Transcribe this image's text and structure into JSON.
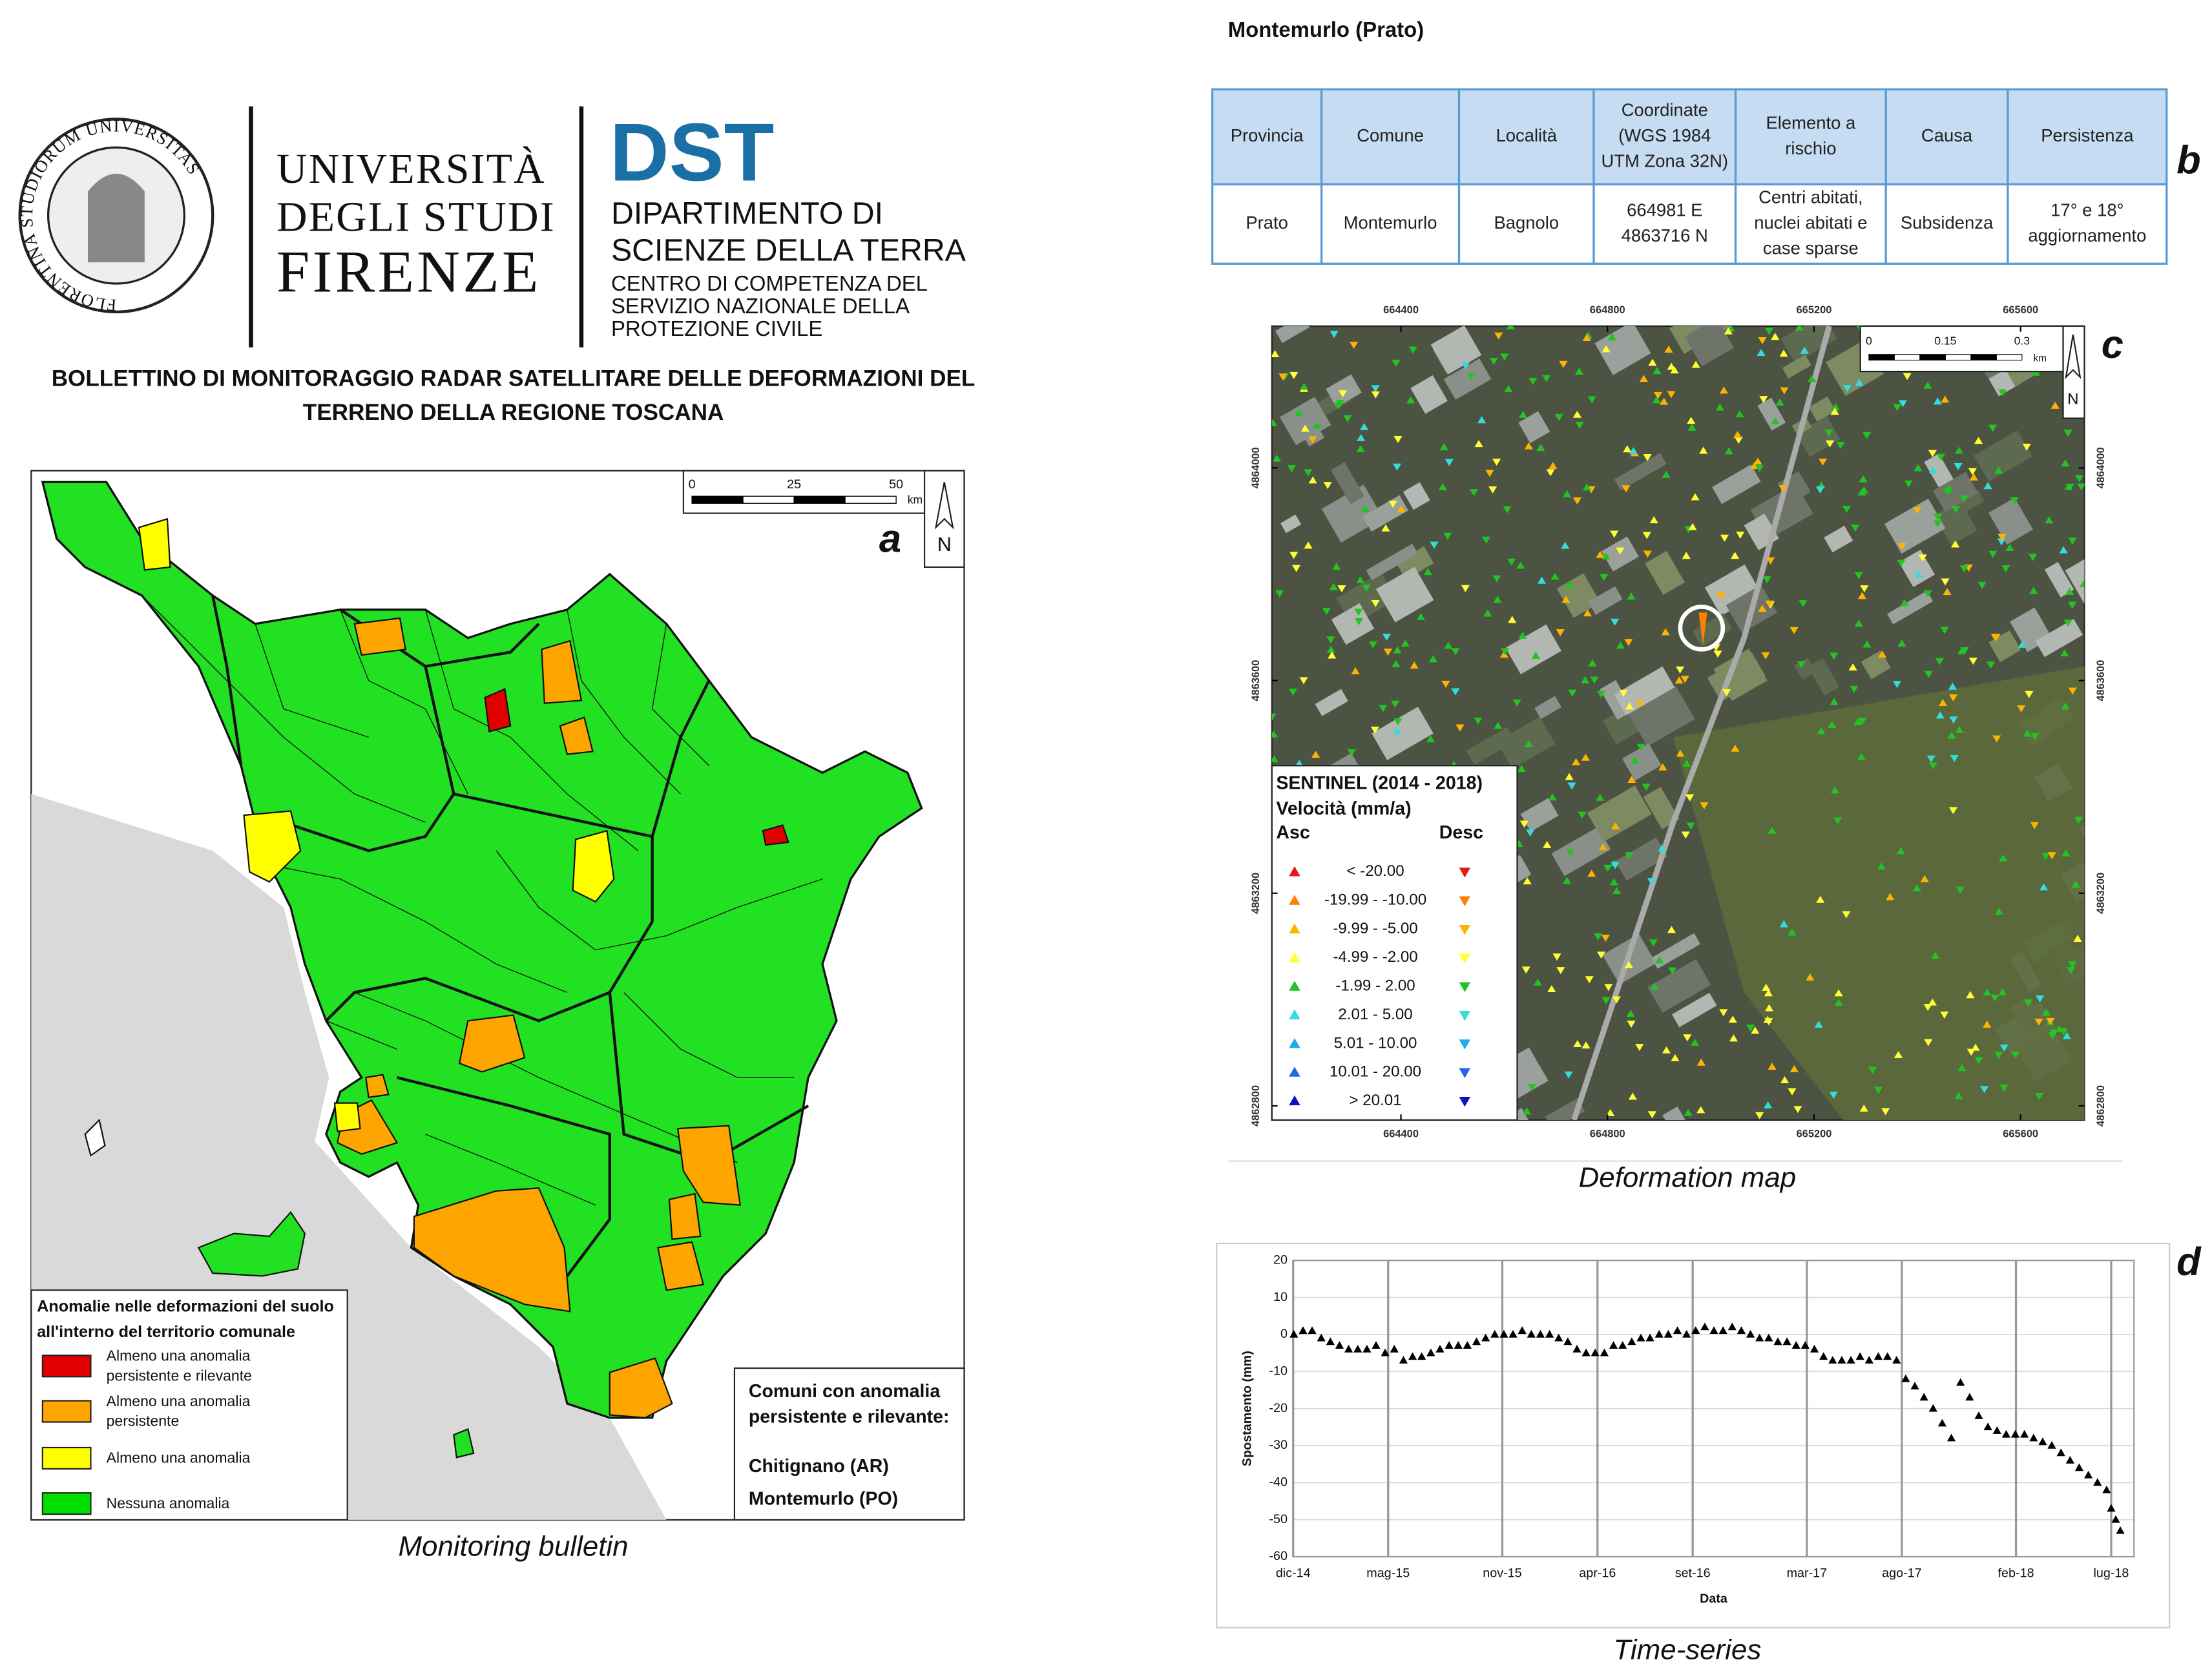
{
  "header": {
    "seal": "FLORENTINA STUDIORUM UNIVERSITAS",
    "university": [
      "UNIVERSITÀ",
      "DEGLI STUDI",
      "FIRENZE"
    ],
    "dst": "DST",
    "department": [
      "DIPARTIMENTO DI",
      "SCIENZE DELLA TERRA"
    ],
    "centre": [
      "CENTRO DI COMPETENZA DEL",
      "SERVIZIO NAZIONALE DELLA",
      "PROTEZIONE CIVILE"
    ],
    "bulletin_title": [
      "BOLLETTINO DI MONITORAGGIO RADAR SATELLITARE DELLE DEFORMAZIONI DEL",
      "TERRENO DELLA REGIONE TOSCANA"
    ]
  },
  "panel_a": {
    "letter": "a",
    "scale": {
      "ticks": [
        0,
        25,
        50
      ],
      "unit": "km"
    },
    "north": "N",
    "legend": {
      "title": [
        "Anomalie nelle deformazioni del suolo",
        "all'interno del territorio comunale"
      ],
      "items": [
        {
          "label": [
            "Almeno una anomalia",
            "persistente e rilevante"
          ],
          "color": "#e00000"
        },
        {
          "label": [
            "Almeno una anomalia",
            "persistente"
          ],
          "color": "#ffa500"
        },
        {
          "label": [
            "Almeno una anomalia"
          ],
          "color": "#ffff00"
        },
        {
          "label": [
            "Nessuna anomalia"
          ],
          "color": "#00e000"
        }
      ]
    },
    "box": {
      "title": [
        "Comuni con anomalia",
        "persistente e rilevante:"
      ],
      "items": [
        "Chitignano (AR)",
        "Montemurlo (PO)"
      ]
    },
    "caption": "Monitoring bulletin"
  },
  "panel_b": {
    "title": "Montemurlo (Prato)",
    "letter": "b",
    "table": {
      "headers": [
        [
          "Provincia"
        ],
        [
          "Comune"
        ],
        [
          "Località"
        ],
        [
          "Coordinate",
          "(WGS 1984",
          "UTM Zona 32N)"
        ],
        [
          "Elemento a",
          "rischio"
        ],
        [
          "Causa"
        ],
        [
          "Persistenza"
        ]
      ],
      "rows": [
        [
          [
            "Prato"
          ],
          [
            "Montemurlo"
          ],
          [
            "Bagnolo"
          ],
          [
            "664981 E",
            "4863716 N"
          ],
          [
            "Centri abitati,",
            "nuclei abitati e",
            "case sparse"
          ],
          [
            "Subsidenza"
          ],
          [
            "17° e 18°",
            "aggiornamento"
          ]
        ]
      ]
    }
  },
  "panel_c": {
    "letter": "c",
    "xticks": [
      664400,
      664800,
      665200,
      665600
    ],
    "yticks": [
      4864000,
      4863600,
      4863200,
      4862800
    ],
    "scale": {
      "ticks": [
        0,
        0.15,
        0.3
      ],
      "unit": "km"
    },
    "north": "N",
    "legend": {
      "title": "SENTINEL (2014 - 2018)",
      "subtitle": "Velocità (mm/a)",
      "asc": "Asc",
      "desc": "Desc",
      "classes": [
        {
          "label": "< -20.00",
          "color": "#e31a1c"
        },
        {
          "label": "-19.99 - -10.00",
          "color": "#ff7f00"
        },
        {
          "label": "-9.99 - -5.00",
          "color": "#ffb300"
        },
        {
          "label": "-4.99 - -2.00",
          "color": "#ffff33"
        },
        {
          "label": "-1.99 - 2.00",
          "color": "#22c322"
        },
        {
          "label": "2.01 - 5.00",
          "color": "#33dddd"
        },
        {
          "label": "5.01 - 10.00",
          "color": "#22aaee"
        },
        {
          "label": "10.01 - 20.00",
          "color": "#2266ee"
        },
        {
          "label": "> 20.01",
          "color": "#1010c0"
        }
      ]
    },
    "caption": "Deformation map"
  },
  "panel_d": {
    "letter": "d",
    "caption": "Time-series"
  },
  "chart_data": {
    "type": "scatter",
    "x_label": "Data",
    "y_label": "Spostamento (mm)",
    "color": "#000000",
    "grid": true,
    "xlim": [
      2014.917,
      2018.6
    ],
    "ylim": [
      -60,
      20
    ],
    "yticks": [
      -60,
      -50,
      -40,
      -30,
      -20,
      -10,
      0,
      10,
      20
    ],
    "xticks": [
      {
        "value": 2014.917,
        "label": "dic-14"
      },
      {
        "value": 2015.333,
        "label": "mag-15"
      },
      {
        "value": 2015.833,
        "label": "nov-15"
      },
      {
        "value": 2016.25,
        "label": "apr-16"
      },
      {
        "value": 2016.667,
        "label": "set-16"
      },
      {
        "value": 2017.167,
        "label": "mar-17"
      },
      {
        "value": 2017.583,
        "label": "ago-17"
      },
      {
        "value": 2018.083,
        "label": "feb-18"
      },
      {
        "value": 2018.5,
        "label": "lug-18"
      }
    ],
    "x": [
      2014.92,
      2014.96,
      2015.0,
      2015.04,
      2015.08,
      2015.12,
      2015.16,
      2015.2,
      2015.24,
      2015.28,
      2015.32,
      2015.36,
      2015.4,
      2015.44,
      2015.48,
      2015.52,
      2015.56,
      2015.6,
      2015.64,
      2015.68,
      2015.72,
      2015.76,
      2015.8,
      2015.84,
      2015.88,
      2015.92,
      2015.96,
      2016.0,
      2016.04,
      2016.08,
      2016.12,
      2016.16,
      2016.2,
      2016.24,
      2016.28,
      2016.32,
      2016.36,
      2016.4,
      2016.44,
      2016.48,
      2016.52,
      2016.56,
      2016.6,
      2016.64,
      2016.68,
      2016.72,
      2016.76,
      2016.8,
      2016.84,
      2016.88,
      2016.92,
      2016.96,
      2017.0,
      2017.04,
      2017.08,
      2017.12,
      2017.16,
      2017.2,
      2017.24,
      2017.28,
      2017.32,
      2017.36,
      2017.4,
      2017.44,
      2017.48,
      2017.52,
      2017.56,
      2017.6,
      2017.64,
      2017.68,
      2017.72,
      2017.76,
      2017.8,
      2017.84,
      2017.88,
      2017.92,
      2017.96,
      2018.0,
      2018.04,
      2018.08,
      2018.12,
      2018.16,
      2018.2,
      2018.24,
      2018.28,
      2018.32,
      2018.36,
      2018.4,
      2018.44,
      2018.48,
      2018.5,
      2018.52,
      2018.54
    ],
    "values": [
      0,
      1,
      1,
      -1,
      -2,
      -3,
      -4,
      -4,
      -4,
      -3,
      -5,
      -4,
      -7,
      -6,
      -6,
      -5,
      -4,
      -3,
      -3,
      -3,
      -2,
      -1,
      0,
      0,
      0,
      1,
      0,
      0,
      0,
      -1,
      -2,
      -4,
      -5,
      -5,
      -5,
      -3,
      -3,
      -2,
      -1,
      -1,
      0,
      0,
      1,
      0,
      1,
      2,
      1,
      1,
      2,
      1,
      0,
      -1,
      -1,
      -2,
      -2,
      -3,
      -3,
      -4,
      -6,
      -7,
      -7,
      -7,
      -6,
      -7,
      -6,
      -6,
      -7,
      -12,
      -14,
      -17,
      -20,
      -24,
      -28,
      -13,
      -17,
      -22,
      -25,
      -26,
      -27,
      -27,
      -27,
      -28,
      -29,
      -30,
      -32,
      -34,
      -36,
      -38,
      -40,
      -42,
      -47,
      -50,
      -53
    ]
  }
}
